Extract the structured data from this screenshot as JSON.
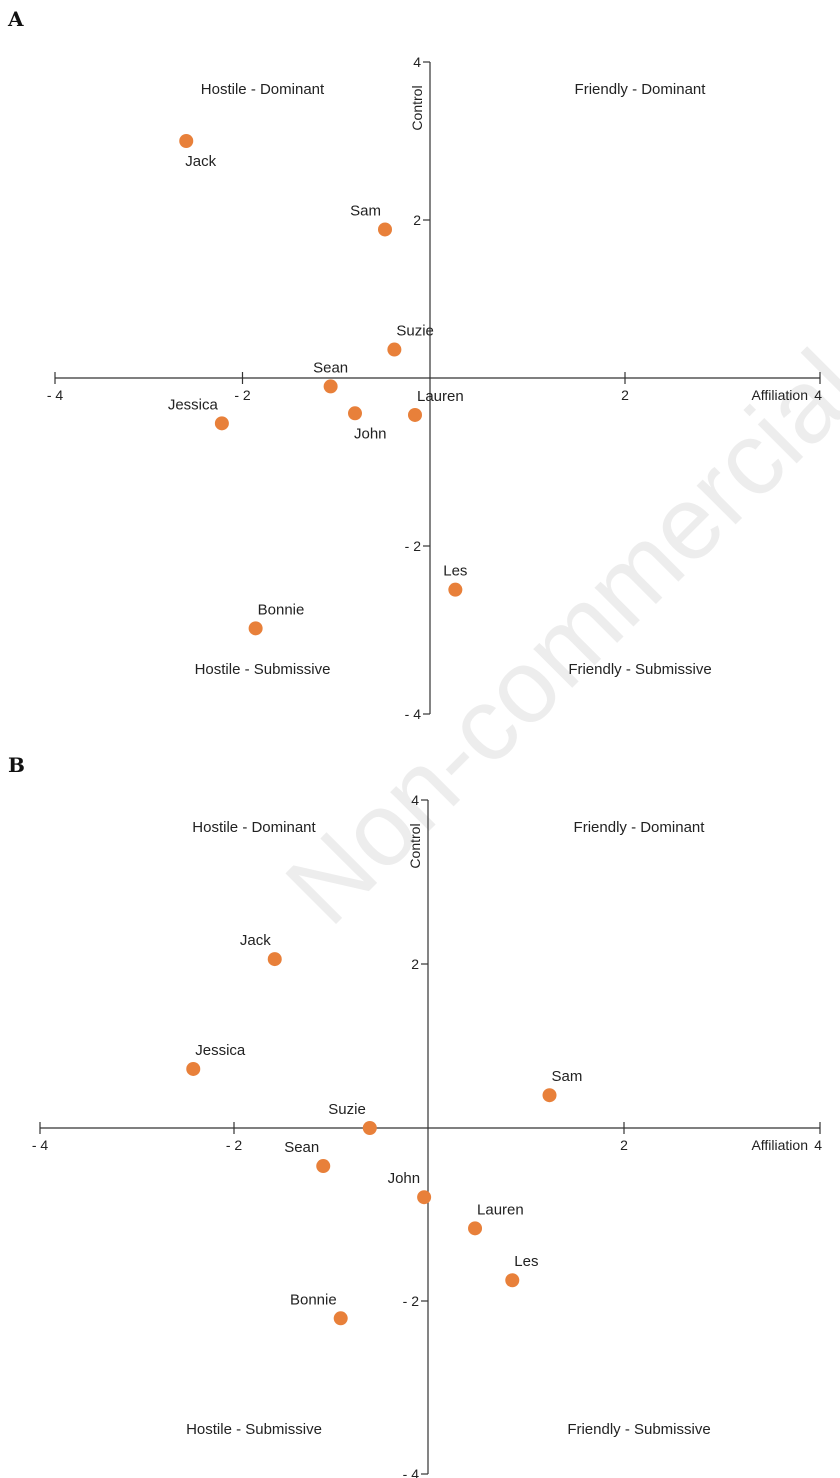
{
  "watermark": "Non-commercial use",
  "chart_data": [
    {
      "type": "scatter",
      "panel": "A",
      "xlabel": "Affiliation",
      "ylabel": "Control",
      "xlim": [
        -4,
        4
      ],
      "ylim": [
        -4,
        4
      ],
      "xticks": [
        {
          "value": -4,
          "label": "- 4"
        },
        {
          "value": -2,
          "label": "- 2"
        },
        {
          "value": 2,
          "label": "2"
        },
        {
          "value": 4,
          "label": "4"
        }
      ],
      "yticks": [
        {
          "value": 4,
          "label": "4"
        },
        {
          "value": 2,
          "label": "2"
        },
        {
          "value": -2,
          "label": "- 2"
        },
        {
          "value": -4,
          "label": "- 4"
        }
      ],
      "quadrants": {
        "top_left": "Hostile - Dominant",
        "top_right": "Friendly - Dominant",
        "bottom_left": "Hostile - Submissive",
        "bottom_right": "Friendly - Submissive"
      },
      "marker_color": "#e8803a",
      "points": [
        {
          "label": "Jack",
          "x": -2.6,
          "y": 3.0,
          "label_pos": "below"
        },
        {
          "label": "Sam",
          "x": -0.48,
          "y": 1.88,
          "label_pos": "above-left"
        },
        {
          "label": "Suzie",
          "x": -0.38,
          "y": 0.36,
          "label_pos": "above-right"
        },
        {
          "label": "Sean",
          "x": -1.06,
          "y": -0.1,
          "label_pos": "above"
        },
        {
          "label": "Lauren",
          "x": -0.16,
          "y": -0.44,
          "label_pos": "above-right"
        },
        {
          "label": "John",
          "x": -0.8,
          "y": -0.42,
          "label_pos": "below"
        },
        {
          "label": "Jessica",
          "x": -2.22,
          "y": -0.54,
          "label_pos": "above-left"
        },
        {
          "label": "Les",
          "x": 0.26,
          "y": -2.52,
          "label_pos": "above"
        },
        {
          "label": "Bonnie",
          "x": -1.86,
          "y": -2.98,
          "label_pos": "above-right"
        }
      ]
    },
    {
      "type": "scatter",
      "panel": "B",
      "xlabel": "Affiliation",
      "ylabel": "Control",
      "xlim": [
        -4,
        4
      ],
      "ylim": [
        -4,
        4
      ],
      "xticks": [
        {
          "value": -4,
          "label": "- 4"
        },
        {
          "value": -2,
          "label": "- 2"
        },
        {
          "value": 2,
          "label": "2"
        },
        {
          "value": 4,
          "label": "4"
        }
      ],
      "yticks": [
        {
          "value": 4,
          "label": "4"
        },
        {
          "value": 2,
          "label": "2"
        },
        {
          "value": -2,
          "label": "- 2"
        },
        {
          "value": -4,
          "label": "- 4"
        }
      ],
      "quadrants": {
        "top_left": "Hostile - Dominant",
        "top_right": "Friendly - Dominant",
        "bottom_left": "Hostile - Submissive",
        "bottom_right": "Friendly - Submissive"
      },
      "marker_color": "#e8803a",
      "points": [
        {
          "label": "Jack",
          "x": -1.58,
          "y": 2.06,
          "label_pos": "above-left"
        },
        {
          "label": "Jessica",
          "x": -2.42,
          "y": 0.72,
          "label_pos": "above-right"
        },
        {
          "label": "Sam",
          "x": 1.24,
          "y": 0.4,
          "label_pos": "above-right"
        },
        {
          "label": "Suzie",
          "x": -0.6,
          "y": 0.0,
          "label_pos": "above-left"
        },
        {
          "label": "Sean",
          "x": -1.08,
          "y": -0.44,
          "label_pos": "above-left"
        },
        {
          "label": "John",
          "x": -0.04,
          "y": -0.8,
          "label_pos": "above-left"
        },
        {
          "label": "Lauren",
          "x": 0.48,
          "y": -1.16,
          "label_pos": "above-right"
        },
        {
          "label": "Les",
          "x": 0.86,
          "y": -1.76,
          "label_pos": "above-right"
        },
        {
          "label": "Bonnie",
          "x": -0.9,
          "y": -2.2,
          "label_pos": "above-left"
        }
      ]
    }
  ]
}
